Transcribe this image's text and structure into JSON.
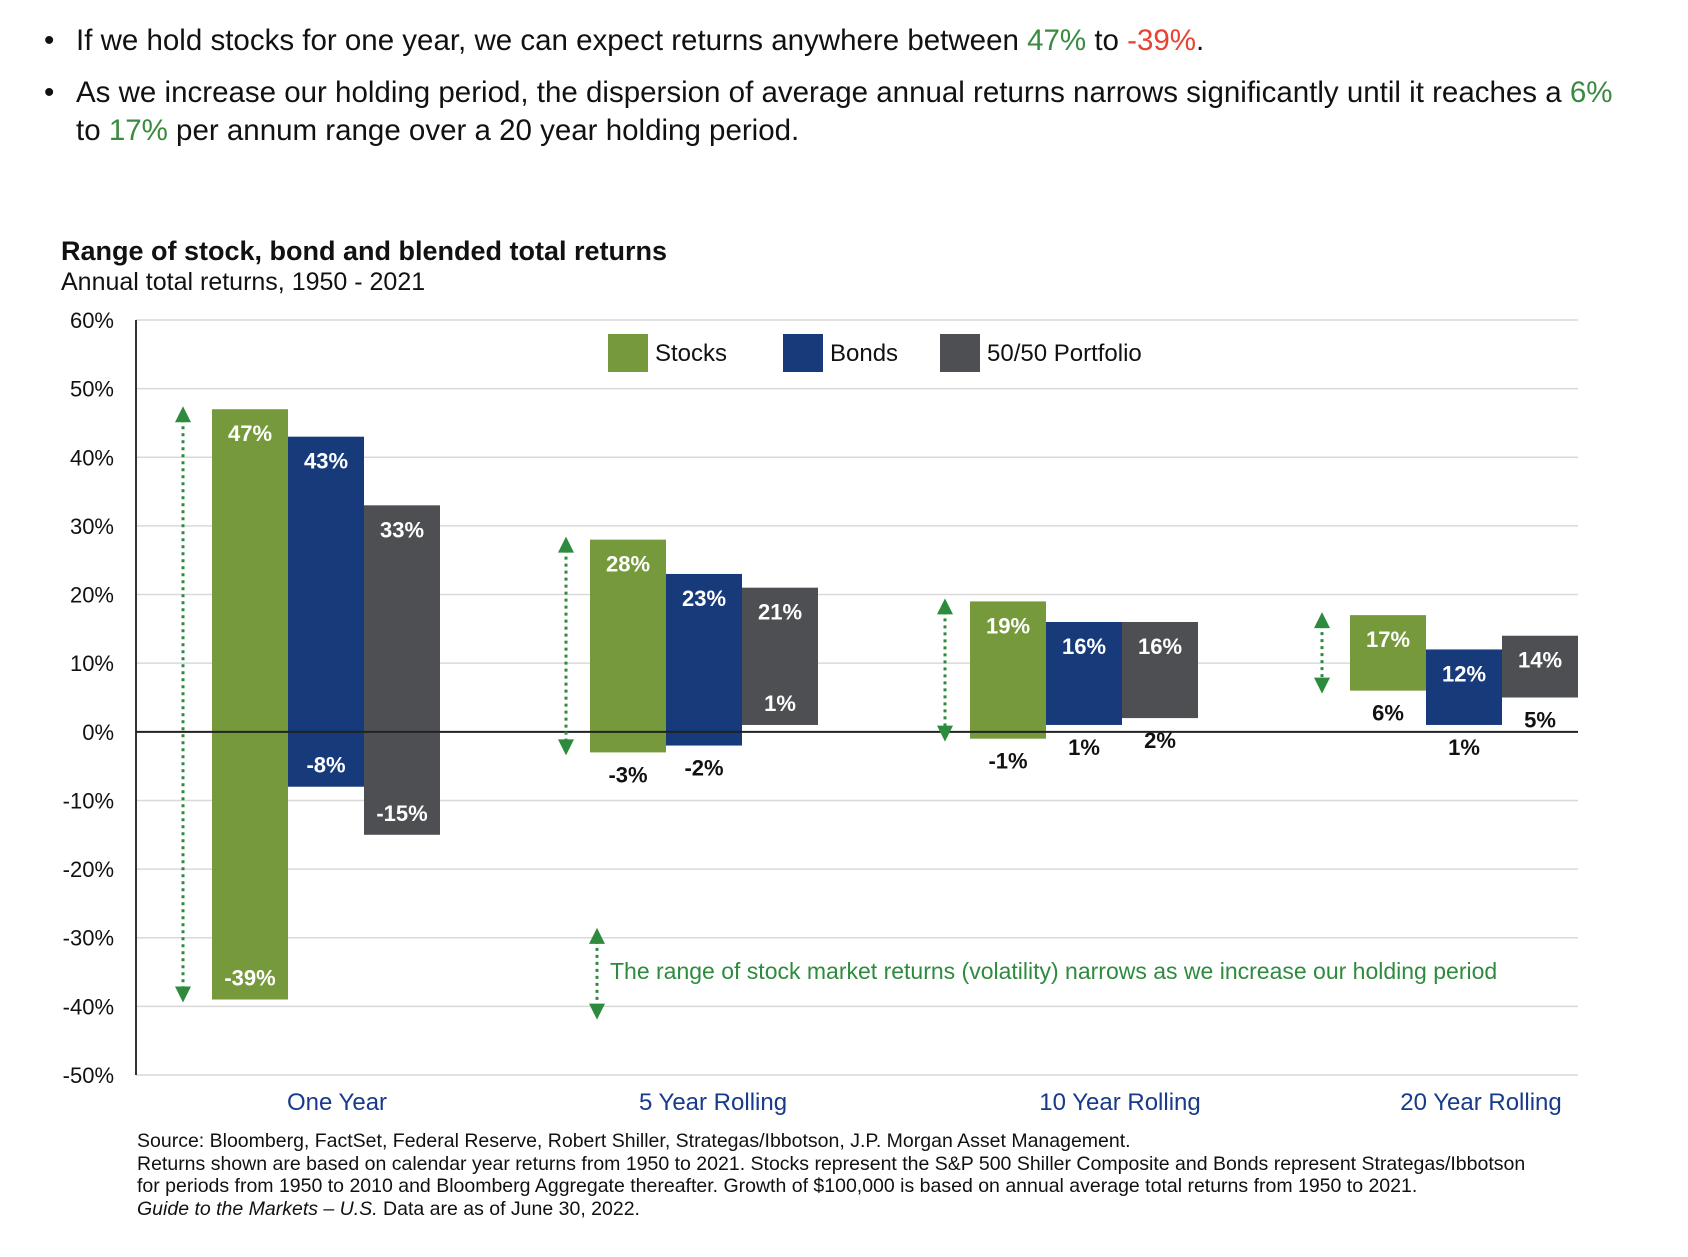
{
  "bullets": {
    "b1": {
      "pre": "If we hold stocks for one year, we can expect returns anywhere between ",
      "hi1": "47%",
      "mid": " to ",
      "hi2": "-39%",
      "post": "."
    },
    "b2": {
      "pre": "As we increase our holding period, the dispersion of average annual returns narrows significantly until it reaches a ",
      "hi1": "6%",
      "mid": " to ",
      "hi2": "17%",
      "post": " per annum range over a 20 year holding period."
    }
  },
  "colors": {
    "stocks": "#769a3b",
    "bonds": "#173a7a",
    "portfolio": "#4d4f52",
    "green_text": "#3a8a3f",
    "red_text": "#e8432e",
    "category": "#173a8a",
    "annotation": "#2e8b3e"
  },
  "chart_data": {
    "type": "bar",
    "subtype": "floating-range",
    "title": "Range of stock, bond and blended total returns",
    "subtitle": "Annual total returns, 1950 - 2021",
    "ylim": [
      -50,
      60
    ],
    "yticks": [
      60,
      50,
      40,
      30,
      20,
      10,
      0,
      -10,
      -20,
      -30,
      -40,
      -50
    ],
    "ytick_labels": [
      "60%",
      "50%",
      "40%",
      "30%",
      "20%",
      "10%",
      "0%",
      "-10%",
      "-20%",
      "-30%",
      "-40%",
      "-50%"
    ],
    "grid": true,
    "legend_position": "top-center",
    "categories": [
      "One Year",
      "5 Year Rolling",
      "10 Year Rolling",
      "20 Year Rolling"
    ],
    "series": [
      {
        "name": "Stocks",
        "color": "#769a3b",
        "high": [
          47,
          28,
          19,
          17
        ],
        "low": [
          -39,
          -3,
          -1,
          6
        ],
        "high_labels": [
          "47%",
          "28%",
          "19%",
          "17%"
        ],
        "low_labels": [
          "-39%",
          "-3%",
          "-1%",
          "6%"
        ]
      },
      {
        "name": "Bonds",
        "color": "#173a7a",
        "high": [
          43,
          23,
          16,
          12
        ],
        "low": [
          -8,
          -2,
          1,
          1
        ],
        "high_labels": [
          "43%",
          "23%",
          "16%",
          "12%"
        ],
        "low_labels": [
          "-8%",
          "-2%",
          "1%",
          "1%"
        ]
      },
      {
        "name": "50/50 Portfolio",
        "color": "#4d4f52",
        "high": [
          33,
          21,
          16,
          14
        ],
        "low": [
          -15,
          1,
          2,
          5
        ],
        "high_labels": [
          "33%",
          "21%",
          "16%",
          "14%"
        ],
        "low_labels": [
          "-15%",
          "1%",
          "2%",
          "5%"
        ]
      }
    ],
    "annotation": "The range of stock market returns (volatility) narrows as we increase our holding period"
  },
  "source": {
    "line1": "Source: Bloomberg, FactSet, Federal Reserve, Robert Shiller, Strategas/Ibbotson, J.P. Morgan Asset Management.",
    "line2": "Returns shown are based on calendar year returns from 1950 to 2021. Stocks represent the S&P 500 Shiller Composite and Bonds represent Strategas/Ibbotson for periods from 1950 to 2010 and Bloomberg Aggregate thereafter. Growth of $100,000 is based on annual average total returns from 1950 to 2021.",
    "line3_italic": "Guide to the Markets – U.S.",
    "line3_rest": " Data are as of June 30, 2022."
  }
}
